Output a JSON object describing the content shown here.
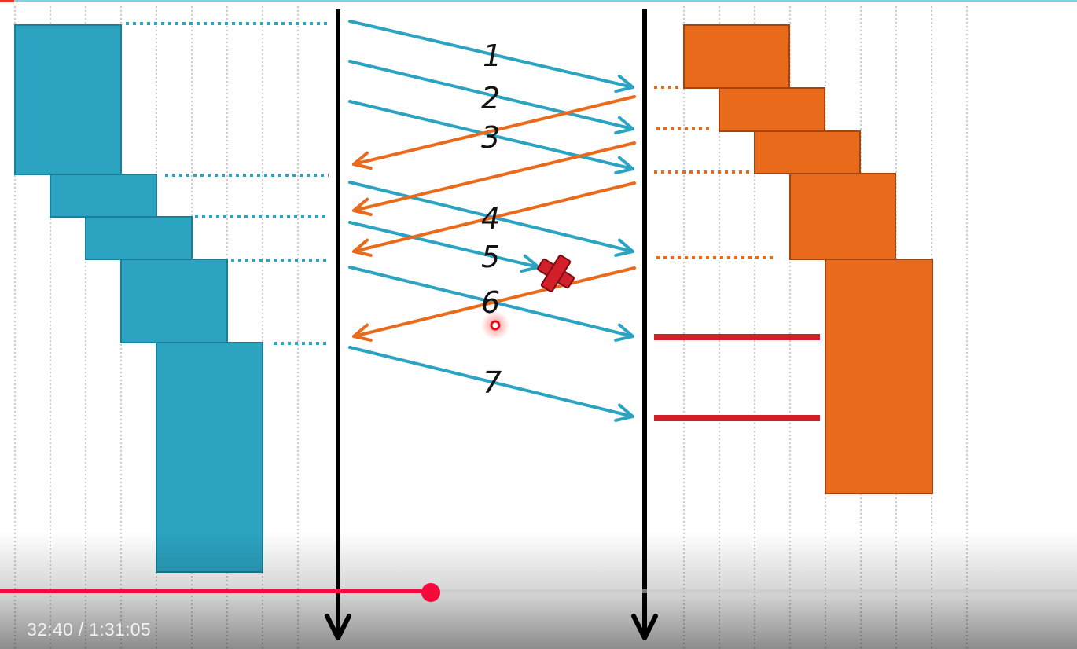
{
  "diagram": {
    "packet_labels": [
      "1",
      "2",
      "3",
      "4",
      "5",
      "6",
      "7"
    ],
    "colors": {
      "sender": "#2ba3c1",
      "receiver": "#ea6a1b",
      "receiver_border": "#a2450f",
      "loss_marker": "#d21f2a",
      "progress": "#f50a3a"
    },
    "icons": {
      "loss": "x-cross-icon",
      "cursor": "cursor-dot-icon"
    }
  },
  "player": {
    "time": "32:40 / 1:31:05",
    "progress_fraction": 0.4
  }
}
